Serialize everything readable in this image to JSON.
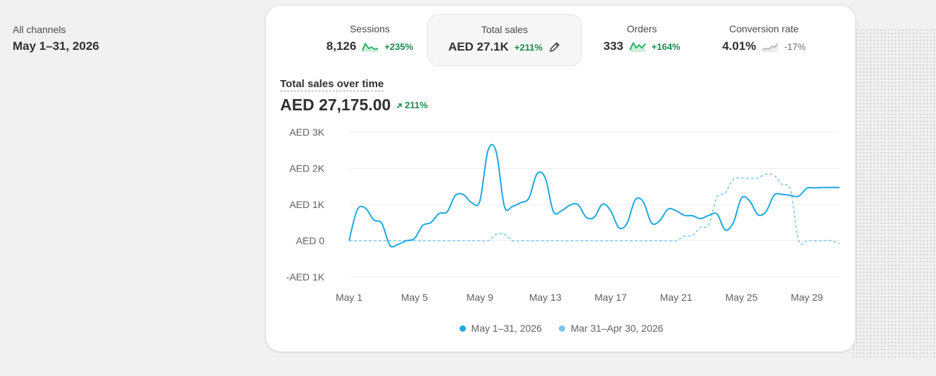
{
  "side": {
    "label": "All channels",
    "range": "May 1–31, 2026"
  },
  "metrics": [
    {
      "title": "Sessions",
      "value": "8,126",
      "change": "+235%",
      "trend": "up"
    },
    {
      "title": "Total sales",
      "value": "AED 27.1K",
      "change": "+211%",
      "trend": "up",
      "selected": true
    },
    {
      "title": "Orders",
      "value": "333",
      "change": "+164%",
      "trend": "up"
    },
    {
      "title": "Conversion rate",
      "value": "4.01%",
      "change": "-17%",
      "trend": "down"
    }
  ],
  "chart_section": {
    "title": "Total sales over time",
    "total": "AED 27,175.00",
    "change": "211%"
  },
  "colors": {
    "current": "#1ea7e1",
    "previous": "#79c8ec",
    "positive": "#1a8a4e"
  },
  "chart_data": {
    "type": "line",
    "y_ticks": [
      "AED 3K",
      "AED 2K",
      "AED 1K",
      "AED 0",
      "-AED 1K"
    ],
    "ylim": [
      -1000,
      3000
    ],
    "x_ticks": [
      "May 1",
      "May 5",
      "May 9",
      "May 13",
      "May 17",
      "May 21",
      "May 25",
      "May 29"
    ],
    "grid": true,
    "legend_placement": "bottom",
    "series": [
      {
        "name": "May 1–31, 2026",
        "style": "solid",
        "x": [
          1,
          1.5,
          2,
          2.5,
          3,
          3.5,
          4,
          4.5,
          5,
          5.5,
          6,
          6.5,
          7,
          7.5,
          8,
          8.5,
          9,
          9.5,
          10,
          10.5,
          11,
          11.5,
          12,
          12.5,
          13,
          13.5,
          14,
          14.5,
          15,
          15.5,
          16,
          16.5,
          17,
          17.5,
          18,
          18.5,
          19,
          19.5,
          20,
          20.5,
          21,
          21.5,
          22,
          22.5,
          23,
          23.5,
          24,
          24.5,
          25,
          25.5,
          26,
          26.5,
          27,
          27.5,
          28,
          28.5,
          29,
          29.5,
          30,
          30.5,
          31
        ],
        "values": [
          0,
          850,
          900,
          580,
          480,
          -130,
          -100,
          0,
          60,
          420,
          500,
          750,
          800,
          1250,
          1270,
          1050,
          1100,
          2500,
          2450,
          950,
          950,
          1050,
          1180,
          1850,
          1730,
          800,
          830,
          980,
          1000,
          650,
          650,
          1010,
          830,
          360,
          480,
          1130,
          1070,
          490,
          550,
          870,
          830,
          700,
          690,
          610,
          700,
          740,
          300,
          500,
          1180,
          1100,
          720,
          800,
          1260,
          1280,
          1250,
          1230,
          1450,
          1460,
          1470,
          1470,
          1470
        ]
      },
      {
        "name": "Mar 31–Apr 30, 2026",
        "style": "dashed",
        "x": [
          1,
          1.5,
          2,
          2.5,
          3,
          3.5,
          4,
          4.5,
          5,
          5.5,
          6,
          6.5,
          7,
          7.5,
          8,
          8.5,
          9,
          9.5,
          10,
          10.5,
          11,
          11.5,
          12,
          12.5,
          13,
          13.5,
          14,
          14.5,
          15,
          15.5,
          16,
          16.5,
          17,
          17.5,
          18,
          18.5,
          19,
          19.5,
          20,
          20.5,
          21,
          21.5,
          22,
          22.5,
          23,
          23.5,
          24,
          24.5,
          25,
          25.5,
          26,
          26.5,
          27,
          27.5,
          28,
          28.5,
          29,
          29.5,
          30,
          30.5,
          31
        ],
        "values": [
          0,
          0,
          0,
          0,
          0,
          0,
          0,
          0,
          0,
          0,
          0,
          0,
          0,
          0,
          0,
          0,
          0,
          0,
          180,
          180,
          0,
          0,
          0,
          0,
          0,
          0,
          0,
          0,
          0,
          0,
          0,
          0,
          0,
          0,
          0,
          0,
          0,
          0,
          0,
          0,
          0,
          120,
          150,
          370,
          440,
          1200,
          1320,
          1700,
          1730,
          1720,
          1730,
          1840,
          1800,
          1550,
          1400,
          0,
          0,
          0,
          0,
          0,
          -80
        ]
      }
    ]
  }
}
